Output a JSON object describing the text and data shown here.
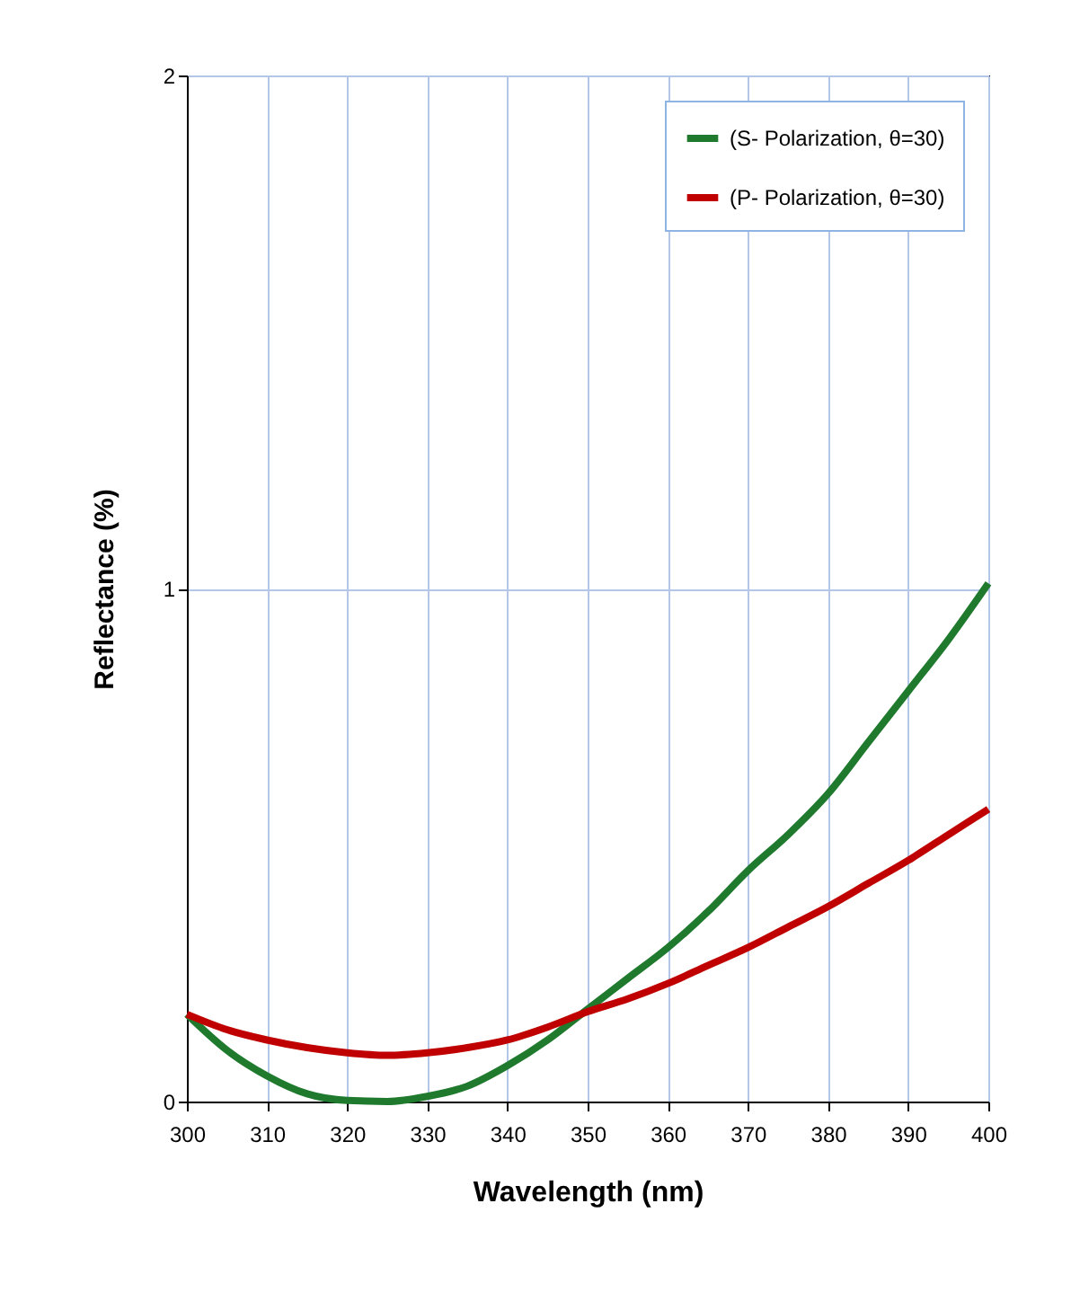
{
  "chart_data": {
    "type": "line",
    "xlabel": "Wavelength (nm)",
    "ylabel": "Reflectance (%)",
    "xlim": [
      300,
      400
    ],
    "xticks": [
      300,
      310,
      320,
      330,
      340,
      350,
      360,
      370,
      380,
      390,
      400
    ],
    "ylim": [
      0,
      2
    ],
    "yticks": [
      0,
      1,
      2
    ],
    "grid": true,
    "legend": "top right",
    "marker": "none",
    "line_style": "solid",
    "series": [
      {
        "name": "(S- Polarization, θ=30)",
        "color": "#1f7a2e",
        "x": [
          300,
          305,
          310,
          315,
          320,
          325,
          330,
          335,
          340,
          345,
          350,
          355,
          360,
          365,
          370,
          375,
          380,
          385,
          390,
          395,
          400
        ],
        "values": [
          0.17,
          0.1,
          0.05,
          0.015,
          0.002,
          0,
          0.01,
          0.03,
          0.07,
          0.12,
          0.18,
          0.24,
          0.3,
          0.37,
          0.45,
          0.52,
          0.6,
          0.7,
          0.8,
          0.9,
          1.01
        ]
      },
      {
        "name": "(P- Polarization, θ=30)",
        "color": "#c00000",
        "x": [
          300,
          305,
          310,
          315,
          320,
          325,
          330,
          335,
          340,
          345,
          350,
          355,
          360,
          365,
          370,
          375,
          380,
          385,
          390,
          395,
          400
        ],
        "values": [
          0.17,
          0.14,
          0.12,
          0.105,
          0.095,
          0.09,
          0.095,
          0.105,
          0.12,
          0.145,
          0.175,
          0.2,
          0.23,
          0.265,
          0.3,
          0.34,
          0.38,
          0.425,
          0.47,
          0.52,
          0.57
        ]
      }
    ]
  }
}
